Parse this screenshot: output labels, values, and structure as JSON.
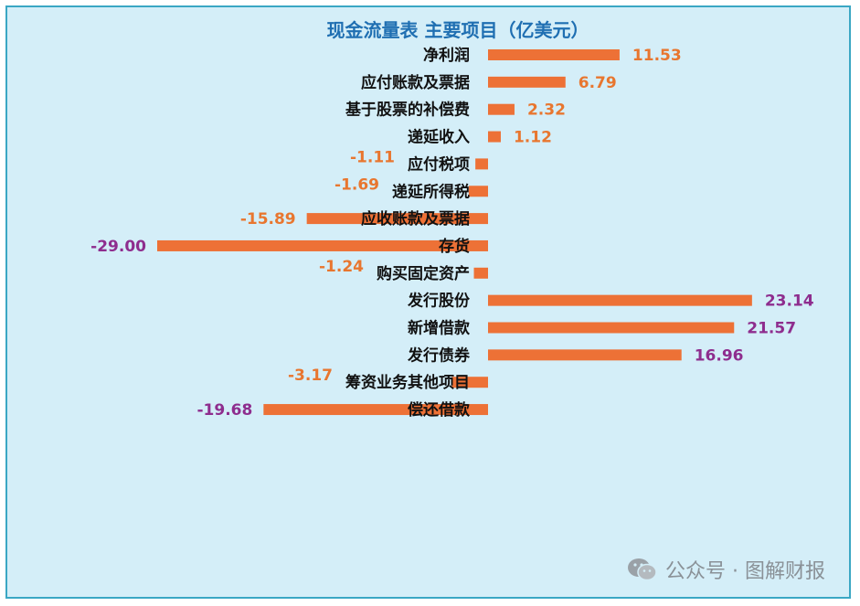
{
  "chart_data": {
    "type": "bar",
    "orientation": "horizontal",
    "title": "现金流量表 主要项目（亿美元）",
    "categories": [
      "净利润",
      "应付账款及票据",
      "基于股票的补偿费",
      "递延收入",
      "应付税项",
      "递延所得税",
      "应收账款及票据",
      "存货",
      "购买固定资产",
      "发行股份",
      "新增借款",
      "发行债券",
      "筹资业务其他项目",
      "偿还借款"
    ],
    "values": [
      11.53,
      6.79,
      2.32,
      1.12,
      -1.11,
      -1.69,
      -15.89,
      -29.0,
      -1.24,
      23.14,
      21.57,
      16.96,
      -3.17,
      -19.68
    ],
    "value_labels": [
      "11.53",
      "6.79",
      "2.32",
      "1.12",
      "-1.11",
      "-1.69",
      "-15.89",
      "-29.00",
      "-1.24",
      "23.14",
      "21.57",
      "16.96",
      "-3.17",
      "-19.68"
    ],
    "label_colors": [
      "orange",
      "orange",
      "orange",
      "orange",
      "orange",
      "orange",
      "orange",
      "purple",
      "orange",
      "purple",
      "purple",
      "purple",
      "orange",
      "purple"
    ],
    "xlim": [
      -29.0,
      23.14
    ],
    "grid": false,
    "legend": "none",
    "colors": {
      "bar": "#ed7136",
      "label_orange": "#e8762f",
      "label_purple": "#8e2d8e",
      "title": "#1f6fb2",
      "background": "#d4eef8",
      "border": "#3aa7c4"
    }
  },
  "watermark": {
    "text": "公众号 · 图解财报",
    "icon": "wechat-icon"
  }
}
